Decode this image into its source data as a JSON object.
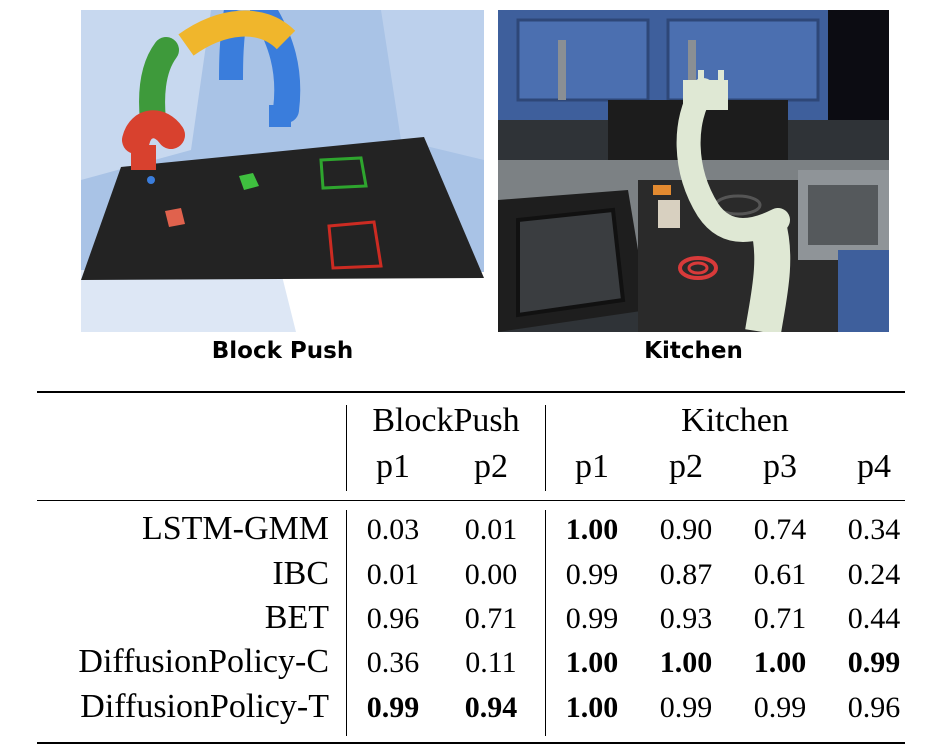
{
  "figure": {
    "captions": [
      "Block Push",
      "Kitchen"
    ]
  },
  "colors": {
    "sky": "#a9c3e6",
    "table_top": "#232323",
    "green_block": "#3fbf3f",
    "red_block": "#e0624d",
    "target_green": "#2ea52e",
    "target_red": "#cc2b22",
    "robot_blue": "#3a7ddc",
    "robot_yellow": "#f0b62c",
    "robot_red": "#d8412e",
    "robot_green": "#3e9a3b",
    "cabinet_blue": "#3e5f9c",
    "panda_white": "#dfe8d4"
  },
  "table": {
    "group_headers": [
      "BlockPush",
      "Kitchen"
    ],
    "columns": [
      "p1",
      "p2",
      "p1",
      "p2",
      "p3",
      "p4"
    ],
    "rows": [
      {
        "method": "LSTM-GMM",
        "values": [
          "0.03",
          "0.01",
          "1.00",
          "0.90",
          "0.74",
          "0.34"
        ],
        "bold": [
          false,
          false,
          true,
          false,
          false,
          false
        ]
      },
      {
        "method": "IBC",
        "values": [
          "0.01",
          "0.00",
          "0.99",
          "0.87",
          "0.61",
          "0.24"
        ],
        "bold": [
          false,
          false,
          false,
          false,
          false,
          false
        ]
      },
      {
        "method": "BET",
        "values": [
          "0.96",
          "0.71",
          "0.99",
          "0.93",
          "0.71",
          "0.44"
        ],
        "bold": [
          false,
          false,
          false,
          false,
          false,
          false
        ]
      },
      {
        "method": "DiffusionPolicy-C",
        "values": [
          "0.36",
          "0.11",
          "1.00",
          "1.00",
          "1.00",
          "0.99"
        ],
        "bold": [
          false,
          false,
          true,
          true,
          true,
          true
        ]
      },
      {
        "method": "DiffusionPolicy-T",
        "values": [
          "0.99",
          "0.94",
          "1.00",
          "0.99",
          "0.99",
          "0.96"
        ],
        "bold": [
          true,
          true,
          true,
          false,
          false,
          false
        ]
      }
    ]
  }
}
